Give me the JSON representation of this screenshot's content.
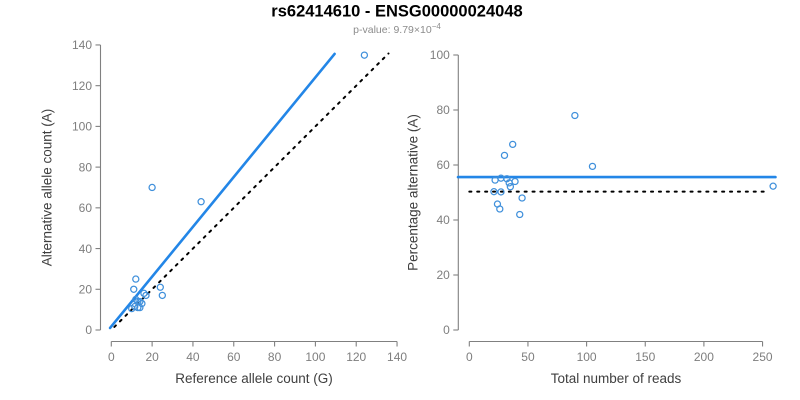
{
  "title": "rs62414610 - ENSG00000024048",
  "subtitle": {
    "text": "p-value: 9.79×10",
    "exponent": "−4"
  },
  "colors": {
    "accent_blue": "#2386E7",
    "point_blue": "#4090DB",
    "dotted_black": "#000000",
    "axis_gray": "#808080",
    "tick_label_gray": "#7E7E7E",
    "axis_title_gray": "#3F3F3F",
    "title_black": "#000000",
    "subtitle_gray": "#8C8C8C",
    "background": "#FFFFFF"
  },
  "chart_data": [
    {
      "type": "scatter",
      "name": "allele-counts",
      "xlabel": "Reference allele count (G)",
      "ylabel": "Alternative allele count (A)",
      "xlim": [
        0,
        140
      ],
      "ylim": [
        0,
        140
      ],
      "xticks": [
        0,
        20,
        40,
        60,
        80,
        100,
        120,
        140
      ],
      "yticks": [
        0,
        20,
        40,
        60,
        80,
        100,
        120,
        140
      ],
      "grid": false,
      "legend": false,
      "points": [
        [
          124,
          135
        ],
        [
          20,
          70
        ],
        [
          44,
          63
        ],
        [
          12,
          25
        ],
        [
          11,
          20
        ],
        [
          24,
          21
        ],
        [
          25,
          17
        ],
        [
          17,
          17
        ],
        [
          16,
          18
        ],
        [
          14,
          14
        ],
        [
          15,
          13
        ],
        [
          12,
          15
        ],
        [
          13,
          14
        ],
        [
          11.5,
          11.5
        ],
        [
          13,
          11
        ],
        [
          14,
          11
        ],
        [
          10,
          10.5
        ]
      ],
      "lines": [
        {
          "name": "regression-line",
          "style": "solid",
          "color_key": "accent_blue",
          "x1": -0.6,
          "y1": 1.0,
          "x2": 109.4,
          "y2": 135.6
        },
        {
          "name": "identity-line",
          "style": "dotted",
          "color_key": "dotted_black",
          "x1": 1.5,
          "y1": 1.5,
          "x2": 135.8,
          "y2": 135.8
        }
      ]
    },
    {
      "type": "scatter",
      "name": "percentage-vs-reads",
      "xlabel": "Total number of reads",
      "ylabel": "Percentage alternative (A)",
      "xlim": [
        0,
        250
      ],
      "ylim": [
        0,
        100
      ],
      "xticks": [
        0,
        50,
        100,
        150,
        200,
        250
      ],
      "yticks": [
        0,
        20,
        40,
        60,
        80,
        100
      ],
      "grid": false,
      "legend": false,
      "points": [
        [
          259,
          52.3
        ],
        [
          90,
          78
        ],
        [
          105,
          59.5
        ],
        [
          37,
          67.5
        ],
        [
          30,
          63.5
        ],
        [
          39,
          54
        ],
        [
          45,
          48
        ],
        [
          43,
          42
        ],
        [
          32,
          55
        ],
        [
          34,
          53.5
        ],
        [
          22,
          54.5
        ],
        [
          21,
          50.3
        ],
        [
          27,
          55.2
        ],
        [
          27,
          50.2
        ],
        [
          35,
          52.1
        ],
        [
          24,
          45.8
        ],
        [
          26,
          44
        ]
      ],
      "lines": [
        {
          "name": "mean-line",
          "style": "solid",
          "color_key": "accent_blue",
          "x1": -9.6,
          "y1": 55.6,
          "x2": 261,
          "y2": 55.6
        },
        {
          "name": "reference-50-line",
          "style": "dotted",
          "color_key": "dotted_black",
          "x1": 0,
          "y1": 50.3,
          "x2": 253,
          "y2": 50.3
        }
      ]
    }
  ]
}
